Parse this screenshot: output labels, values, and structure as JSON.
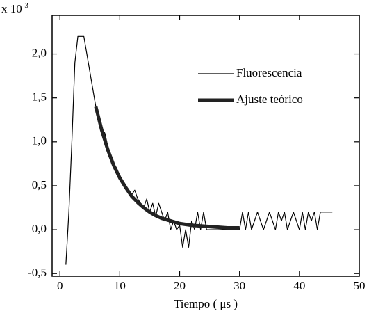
{
  "chart_data": {
    "type": "line",
    "x_label": "Tiempo ( μs )",
    "y_multiplier": {
      "base": "x 10",
      "exponent": "-3"
    },
    "xlim": [
      -1.3,
      50
    ],
    "ylim": [
      -0.53,
      2.44
    ],
    "xticks": [
      0,
      10,
      20,
      30,
      40,
      50
    ],
    "yticks": [
      {
        "value": -0.5,
        "label": "-0,5"
      },
      {
        "value": 0,
        "label": "0,0"
      },
      {
        "value": 0.5,
        "label": "0,5"
      },
      {
        "value": 1,
        "label": "1,0"
      },
      {
        "value": 1.5,
        "label": "1,5"
      },
      {
        "value": 2,
        "label": "2,0"
      }
    ],
    "legend": "upper right",
    "series": [
      {
        "name": "Fluorescencia",
        "color": "#000000",
        "x": [
          1,
          1.5,
          2,
          2.5,
          3,
          3.5,
          4,
          4.5,
          5,
          5.5,
          6,
          6.5,
          7,
          7.5,
          8,
          8.5,
          9,
          9.5,
          10,
          10.5,
          11,
          11.5,
          12,
          12.5,
          13,
          13.5,
          14,
          14.5,
          15,
          15.5,
          16,
          16.5,
          17,
          17.5,
          18,
          18.5,
          19,
          19.5,
          20,
          20.5,
          21,
          21.5,
          22,
          22.5,
          23,
          23.5,
          24,
          24.5,
          25,
          30,
          30.5,
          31,
          31.5,
          32,
          33,
          34,
          35,
          36,
          36.5,
          37,
          37.5,
          38,
          39,
          40,
          40.5,
          41,
          41.5,
          42,
          42.5,
          43,
          43.5,
          45.5
        ],
        "values": [
          -0.4,
          0.2,
          1.0,
          1.9,
          2.2,
          2.2,
          2.2,
          2.0,
          1.8,
          1.6,
          1.4,
          1.3,
          1.15,
          1.1,
          0.95,
          0.85,
          0.75,
          0.7,
          0.6,
          0.55,
          0.5,
          0.45,
          0.4,
          0.45,
          0.35,
          0.3,
          0.25,
          0.35,
          0.2,
          0.3,
          0.15,
          0.3,
          0.2,
          0.1,
          0.2,
          0.0,
          0.1,
          0.0,
          0.05,
          -0.2,
          0.0,
          -0.2,
          0.1,
          0.0,
          0.2,
          0.0,
          0.2,
          0.0,
          0.0,
          0.0,
          0.2,
          0.0,
          0.2,
          0.0,
          0.2,
          0.0,
          0.2,
          0.0,
          0.2,
          0.1,
          0.2,
          0.0,
          0.2,
          0.0,
          0.2,
          0.0,
          0.2,
          0.1,
          0.2,
          0.0,
          0.2,
          0.2
        ]
      },
      {
        "name": "Ajuste teórico",
        "color": "#222222",
        "x": [
          6,
          7,
          8,
          9,
          10,
          11,
          12,
          13,
          14,
          15,
          16,
          17,
          18,
          19,
          20,
          22,
          24,
          26,
          28,
          30
        ],
        "values": [
          1.4,
          1.13,
          0.91,
          0.73,
          0.59,
          0.48,
          0.38,
          0.31,
          0.25,
          0.2,
          0.16,
          0.13,
          0.11,
          0.09,
          0.07,
          0.05,
          0.04,
          0.03,
          0.02,
          0.02
        ]
      }
    ]
  }
}
